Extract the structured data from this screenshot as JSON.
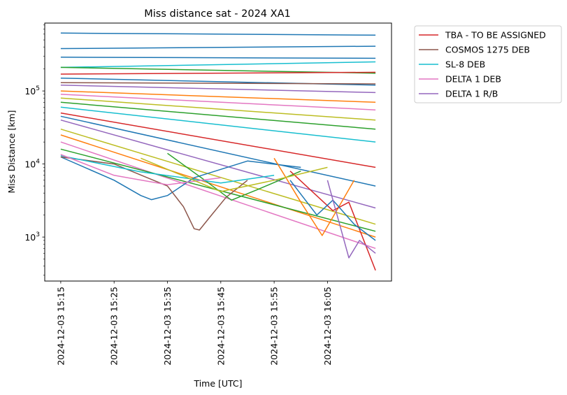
{
  "chart_data": {
    "type": "line",
    "title": "Miss distance sat - 2024 XA1",
    "xlabel": "Time [UTC]",
    "ylabel": "Miss Distance [km]",
    "yscale": "log",
    "ylim": [
      250,
      850000
    ],
    "xlim": [
      "2024-12-03 15:12",
      "2024-12-03 16:17"
    ],
    "x_ticks": [
      "2024-12-03 15:15",
      "2024-12-03 15:25",
      "2024-12-03 15:35",
      "2024-12-03 15:45",
      "2024-12-03 15:55",
      "2024-12-03 16:05"
    ],
    "y_ticks": [
      {
        "value": 1000,
        "base": "10",
        "exp": "3"
      },
      {
        "value": 10000,
        "base": "10",
        "exp": "4"
      },
      {
        "value": 100000,
        "base": "10",
        "exp": "5"
      }
    ],
    "legend": {
      "placement": "outside top-right",
      "entries": [
        {
          "name": "TBA - TO BE ASSIGNED",
          "color": "#d62728"
        },
        {
          "name": "COSMOS 1275 DEB",
          "color": "#8c564b"
        },
        {
          "name": "SL-8 DEB",
          "color": "#17becf"
        },
        {
          "name": "DELTA 1 DEB",
          "color": "#e377c2"
        },
        {
          "name": "DELTA 1 R/B",
          "color": "#9467bd"
        }
      ]
    },
    "series": [
      {
        "color": "#1f77b4",
        "x": [
          "2024-12-03 15:15",
          "2024-12-03 16:14"
        ],
        "y": [
          620000,
          580000
        ]
      },
      {
        "color": "#1f77b4",
        "x": [
          "2024-12-03 15:15",
          "2024-12-03 16:14"
        ],
        "y": [
          380000,
          410000
        ]
      },
      {
        "color": "#1f77b4",
        "x": [
          "2024-12-03 15:15",
          "2024-12-03 16:14"
        ],
        "y": [
          290000,
          280000
        ]
      },
      {
        "color": "#17becf",
        "x": [
          "2024-12-03 15:15",
          "2024-12-03 16:14"
        ],
        "y": [
          210000,
          250000
        ]
      },
      {
        "color": "#2ca02c",
        "x": [
          "2024-12-03 15:15",
          "2024-12-03 16:14"
        ],
        "y": [
          210000,
          175000
        ]
      },
      {
        "color": "#d62728",
        "x": [
          "2024-12-03 15:15",
          "2024-12-03 16:14"
        ],
        "y": [
          170000,
          180000
        ]
      },
      {
        "color": "#1f77b4",
        "x": [
          "2024-12-03 15:15",
          "2024-12-03 16:14"
        ],
        "y": [
          150000,
          120000
        ]
      },
      {
        "color": "#8c564b",
        "x": [
          "2024-12-03 15:15",
          "2024-12-03 16:14"
        ],
        "y": [
          130000,
          125000
        ]
      },
      {
        "color": "#9467bd",
        "x": [
          "2024-12-03 15:15",
          "2024-12-03 16:14"
        ],
        "y": [
          120000,
          95000
        ]
      },
      {
        "color": "#ff7f0e",
        "x": [
          "2024-12-03 15:15",
          "2024-12-03 16:14"
        ],
        "y": [
          100000,
          70000
        ]
      },
      {
        "color": "#e377c2",
        "x": [
          "2024-12-03 15:15",
          "2024-12-03 16:14"
        ],
        "y": [
          90000,
          55000
        ]
      },
      {
        "color": "#bcbd22",
        "x": [
          "2024-12-03 15:15",
          "2024-12-03 16:14"
        ],
        "y": [
          80000,
          40000
        ]
      },
      {
        "color": "#2ca02c",
        "x": [
          "2024-12-03 15:15",
          "2024-12-03 16:14"
        ],
        "y": [
          70000,
          30000
        ]
      },
      {
        "color": "#17becf",
        "x": [
          "2024-12-03 15:15",
          "2024-12-03 16:14"
        ],
        "y": [
          60000,
          20000
        ]
      },
      {
        "color": "#d62728",
        "x": [
          "2024-12-03 15:15",
          "2024-12-03 16:14"
        ],
        "y": [
          50000,
          9000
        ]
      },
      {
        "color": "#1f77b4",
        "x": [
          "2024-12-03 15:15",
          "2024-12-03 16:14"
        ],
        "y": [
          45000,
          5000
        ]
      },
      {
        "color": "#9467bd",
        "x": [
          "2024-12-03 15:15",
          "2024-12-03 16:14"
        ],
        "y": [
          40000,
          2500
        ]
      },
      {
        "color": "#bcbd22",
        "x": [
          "2024-12-03 15:15",
          "2024-12-03 16:14"
        ],
        "y": [
          30000,
          1500
        ]
      },
      {
        "color": "#ff7f0e",
        "x": [
          "2024-12-03 15:15",
          "2024-12-03 16:14"
        ],
        "y": [
          25000,
          1000
        ]
      },
      {
        "color": "#e377c2",
        "x": [
          "2024-12-03 15:15",
          "2024-12-03 16:14"
        ],
        "y": [
          20000,
          700
        ]
      },
      {
        "color": "#2ca02c",
        "x": [
          "2024-12-03 15:15",
          "2024-12-03 16:14"
        ],
        "y": [
          16000,
          1200
        ]
      },
      {
        "color": "#1f77b4",
        "x": [
          "2024-12-03 15:15",
          "2024-12-03 15:25",
          "2024-12-03 15:30",
          "2024-12-03 15:32",
          "2024-12-03 15:35",
          "2024-12-03 15:40",
          "2024-12-03 15:50",
          "2024-12-03 16:00"
        ],
        "y": [
          12500,
          6000,
          3700,
          3250,
          3700,
          6500,
          11000,
          9000
        ]
      },
      {
        "color": "#8c564b",
        "x": [
          "2024-12-03 15:15",
          "2024-12-03 15:25",
          "2024-12-03 15:35",
          "2024-12-03 15:38",
          "2024-12-03 15:40",
          "2024-12-03 15:41",
          "2024-12-03 15:43",
          "2024-12-03 15:46",
          "2024-12-03 15:50"
        ],
        "y": [
          12500,
          10000,
          5000,
          2600,
          1300,
          1250,
          1900,
          3500,
          6000
        ]
      },
      {
        "color": "#2ca02c",
        "x": [
          "2024-12-03 15:35",
          "2024-12-03 15:42",
          "2024-12-03 15:47",
          "2024-12-03 15:52",
          "2024-12-03 16:00"
        ],
        "y": [
          14000,
          6000,
          3200,
          4500,
          8000
        ]
      },
      {
        "color": "#ff7f0e",
        "x": [
          "2024-12-03 15:55",
          "2024-12-03 16:00",
          "2024-12-03 16:04",
          "2024-12-03 16:07",
          "2024-12-03 16:10"
        ],
        "y": [
          12000,
          3000,
          1050,
          2500,
          6000
        ]
      },
      {
        "color": "#d62728",
        "x": [
          "2024-12-03 15:58",
          "2024-12-03 16:06",
          "2024-12-03 16:09",
          "2024-12-03 16:14"
        ],
        "y": [
          8000,
          2300,
          3000,
          350
        ]
      },
      {
        "color": "#1f77b4",
        "x": [
          "2024-12-03 15:58",
          "2024-12-03 16:03",
          "2024-12-03 16:06",
          "2024-12-03 16:10",
          "2024-12-03 16:14"
        ],
        "y": [
          6000,
          2000,
          3200,
          1500,
          900
        ]
      },
      {
        "color": "#17becf",
        "x": [
          "2024-12-03 15:15",
          "2024-12-03 15:30",
          "2024-12-03 15:45",
          "2024-12-03 15:55"
        ],
        "y": [
          13000,
          7800,
          5500,
          7000
        ]
      },
      {
        "color": "#e377c2",
        "x": [
          "2024-12-03 15:15",
          "2024-12-03 15:25",
          "2024-12-03 15:35",
          "2024-12-03 15:45"
        ],
        "y": [
          13500,
          7000,
          5200,
          6500
        ]
      },
      {
        "color": "#bcbd22",
        "x": [
          "2024-12-03 15:30",
          "2024-12-03 15:45",
          "2024-12-03 15:55",
          "2024-12-03 16:05"
        ],
        "y": [
          12000,
          4200,
          6000,
          9000
        ]
      },
      {
        "color": "#9467bd",
        "x": [
          "2024-12-03 16:05",
          "2024-12-03 16:09",
          "2024-12-03 16:11",
          "2024-12-03 16:14"
        ],
        "y": [
          6000,
          520,
          900,
          600
        ]
      }
    ]
  }
}
